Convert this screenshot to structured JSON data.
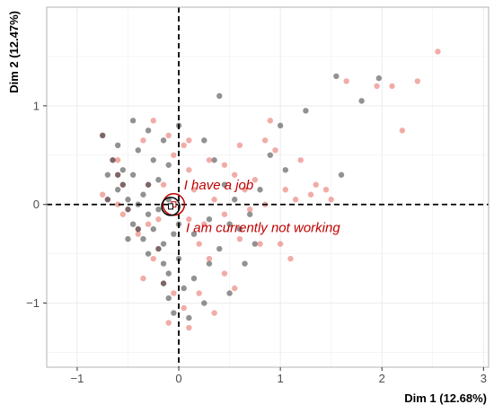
{
  "chart_data": {
    "type": "scatter",
    "title": "",
    "xlabel": "Dim 1 (12.68%)",
    "ylabel": "Dim 2 (12.47%)",
    "xlim": [
      -1.3,
      3.05
    ],
    "ylim": [
      -1.65,
      2.0
    ],
    "x_ticks": [
      -1,
      0,
      1,
      2,
      3
    ],
    "y_ticks": [
      -1,
      0,
      1
    ],
    "grid": true,
    "reference_lines": {
      "x": 0,
      "y": 0,
      "style": "dashed"
    },
    "colors": {
      "grey": "#4a4a4a",
      "red": "#e8756d",
      "dark": "#2a0000",
      "annotation": "#c00000",
      "grid": "#ebebeb",
      "panel_border": "#b3b3b3"
    },
    "annotations": [
      {
        "text": "I have a job",
        "x": 0.05,
        "y": 0.15,
        "color": "#c00000"
      },
      {
        "text": "I am currently not working",
        "x": 0.07,
        "y": -0.28,
        "color": "#c00000"
      }
    ],
    "category_markers": [
      {
        "x": -0.05,
        "y": 0.0,
        "r_px": 12,
        "color": "#c00000"
      },
      {
        "x": -0.08,
        "y": -0.02,
        "r_px": 10,
        "color": "#000000"
      }
    ],
    "series": [
      {
        "color": "#4a4a4a",
        "points": [
          [
            -0.45,
            0.85
          ],
          [
            -0.3,
            0.75
          ],
          [
            -0.6,
            0.6
          ],
          [
            -0.4,
            0.55
          ],
          [
            -0.55,
            0.35
          ],
          [
            -0.45,
            0.3
          ],
          [
            -0.7,
            0.3
          ],
          [
            -0.6,
            0.15
          ],
          [
            -0.5,
            0.05
          ],
          [
            -0.35,
            0.1
          ],
          [
            -0.2,
            0.25
          ],
          [
            -0.1,
            0.4
          ],
          [
            -0.15,
            0.65
          ],
          [
            0.0,
            0.8
          ],
          [
            0.4,
            1.1
          ],
          [
            -0.4,
            0.0
          ],
          [
            -0.3,
            -0.1
          ],
          [
            -0.2,
            -0.05
          ],
          [
            -0.1,
            0.05
          ],
          [
            -0.25,
            -0.25
          ],
          [
            -0.35,
            -0.35
          ],
          [
            -0.45,
            -0.2
          ],
          [
            -0.3,
            -0.5
          ],
          [
            -0.15,
            -0.4
          ],
          [
            -0.05,
            -0.3
          ],
          [
            0.0,
            -0.55
          ],
          [
            -0.1,
            -0.7
          ],
          [
            0.05,
            -0.85
          ],
          [
            0.15,
            -0.75
          ],
          [
            0.3,
            -0.6
          ],
          [
            0.4,
            -0.45
          ],
          [
            0.5,
            -0.9
          ],
          [
            0.25,
            -1.0
          ],
          [
            0.1,
            -1.15
          ],
          [
            -0.1,
            -0.95
          ],
          [
            0.6,
            -0.25
          ],
          [
            0.7,
            -0.1
          ],
          [
            0.8,
            0.15
          ],
          [
            0.9,
            0.5
          ],
          [
            1.0,
            0.8
          ],
          [
            1.05,
            0.35
          ],
          [
            1.25,
            0.95
          ],
          [
            1.6,
            0.3
          ],
          [
            1.55,
            1.3
          ],
          [
            1.8,
            1.05
          ],
          [
            1.97,
            1.28
          ],
          [
            0.75,
            -0.4
          ],
          [
            0.65,
            -0.6
          ],
          [
            0.45,
            0.2
          ],
          [
            0.35,
            0.45
          ],
          [
            0.25,
            0.65
          ],
          [
            0.5,
            -0.2
          ],
          [
            0.0,
            -0.2
          ],
          [
            -0.05,
            -1.1
          ],
          [
            0.15,
            -0.3
          ],
          [
            -0.5,
            -0.35
          ],
          [
            -0.25,
            0.45
          ],
          [
            0.3,
            -0.15
          ],
          [
            0.55,
            0.05
          ],
          [
            -0.15,
            -0.6
          ]
        ]
      },
      {
        "color": "#e8756d",
        "points": [
          [
            -0.25,
            0.85
          ],
          [
            -0.1,
            0.7
          ],
          [
            0.05,
            0.6
          ],
          [
            0.1,
            0.65
          ],
          [
            0.3,
            0.45
          ],
          [
            0.45,
            0.4
          ],
          [
            0.55,
            0.3
          ],
          [
            0.65,
            0.15
          ],
          [
            0.75,
            0.25
          ],
          [
            0.85,
            0.65
          ],
          [
            0.95,
            0.55
          ],
          [
            1.05,
            0.15
          ],
          [
            1.15,
            0.05
          ],
          [
            1.3,
            0.1
          ],
          [
            1.45,
            0.15
          ],
          [
            1.5,
            0.05
          ],
          [
            1.65,
            1.25
          ],
          [
            1.95,
            1.2
          ],
          [
            2.1,
            1.2
          ],
          [
            2.35,
            1.25
          ],
          [
            2.55,
            1.55
          ],
          [
            2.2,
            0.75
          ],
          [
            -0.2,
            -0.15
          ],
          [
            0.1,
            -0.15
          ],
          [
            0.2,
            -0.4
          ],
          [
            0.3,
            -0.55
          ],
          [
            0.45,
            -0.7
          ],
          [
            0.55,
            -0.85
          ],
          [
            0.2,
            -0.9
          ],
          [
            0.05,
            -1.05
          ],
          [
            -0.05,
            -0.9
          ],
          [
            -0.1,
            -1.2
          ],
          [
            0.1,
            -1.25
          ],
          [
            -0.3,
            -0.2
          ],
          [
            -0.4,
            -0.3
          ],
          [
            -0.55,
            -0.1
          ],
          [
            -0.6,
            0.0
          ],
          [
            -0.75,
            0.1
          ],
          [
            -0.6,
            0.45
          ],
          [
            -0.35,
            0.65
          ],
          [
            0.35,
            0.05
          ],
          [
            0.45,
            -0.1
          ],
          [
            0.6,
            -0.35
          ],
          [
            0.8,
            -0.4
          ],
          [
            1.0,
            -0.4
          ],
          [
            1.1,
            -0.55
          ],
          [
            0.7,
            -0.05
          ],
          [
            -0.15,
            0.2
          ],
          [
            0.15,
            0.15
          ],
          [
            -0.35,
            -0.75
          ],
          [
            -0.25,
            -0.55
          ],
          [
            0.35,
            -1.1
          ],
          [
            1.2,
            0.45
          ],
          [
            1.35,
            0.2
          ],
          [
            0.9,
            0.85
          ],
          [
            0.1,
            0.35
          ],
          [
            -0.05,
            0.5
          ],
          [
            0.25,
            -0.2
          ],
          [
            0.6,
            0.6
          ],
          [
            0.85,
            0.0
          ]
        ]
      },
      {
        "color": "#2a0000",
        "points": [
          [
            -0.75,
            0.7
          ],
          [
            -0.65,
            0.45
          ],
          [
            -0.55,
            0.2
          ],
          [
            -0.7,
            0.05
          ],
          [
            -0.5,
            -0.05
          ],
          [
            -0.4,
            -0.25
          ],
          [
            -0.3,
            0.2
          ],
          [
            -0.6,
            0.3
          ],
          [
            -0.2,
            -0.45
          ],
          [
            -0.15,
            -0.8
          ]
        ]
      }
    ]
  }
}
